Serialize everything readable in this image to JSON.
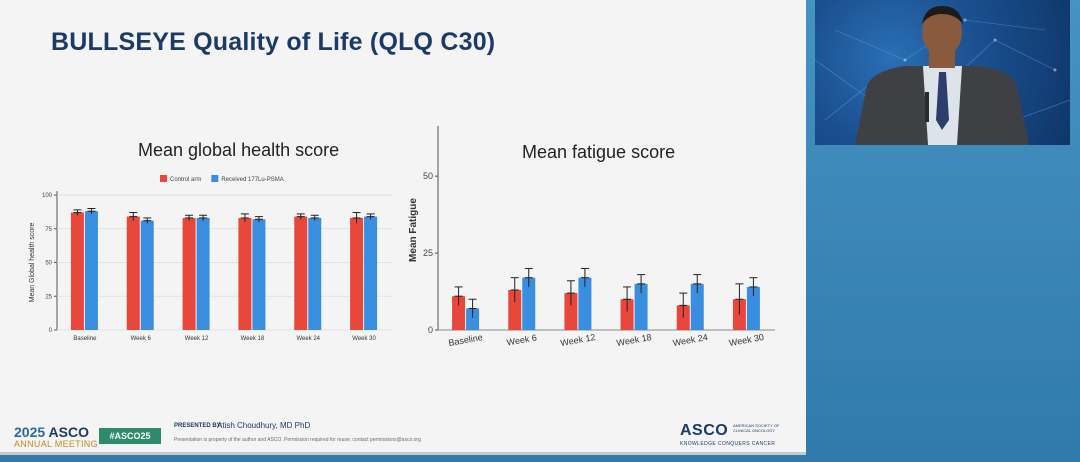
{
  "slide": {
    "title": "BULLSEYE Quality of Life (QLQ C30)"
  },
  "footer": {
    "year": "2025",
    "asco": "ASCO",
    "meeting": "ANNUAL MEETING",
    "hashtag": "#ASCO25",
    "presented_by_label": "PRESENTED BY:",
    "presenter": "Atish Choudhury, MD PhD",
    "disclaimer": "Presentation is property of the author and ASCO. Permission required for reuse; contact permissions@asco.org",
    "logo": "ASCO",
    "logo_society": "AMERICAN SOCIETY OF CLINICAL ONCOLOGY",
    "logo_tagline": "KNOWLEDGE CONQUERS CANCER"
  },
  "colors": {
    "control": "#e8473b",
    "treatment": "#3a8ee0",
    "title": "#1c3a66"
  },
  "chart_data": [
    {
      "type": "bar",
      "title": "Mean global health score",
      "ylabel": "Mean Global health score",
      "xlabel": "",
      "ylim": [
        0,
        100
      ],
      "yticks": [
        0,
        25,
        50,
        75,
        100
      ],
      "legend_position": "top-center",
      "categories": [
        "Baseline",
        "Week 6",
        "Week 12",
        "Week 18",
        "Week 24",
        "Week 30"
      ],
      "series": [
        {
          "name": "Control arm",
          "color": "#e8473b",
          "values": [
            87,
            84,
            83,
            83,
            84,
            83
          ],
          "errors": [
            2,
            3,
            2,
            3,
            2,
            4
          ]
        },
        {
          "name": "Received 177Lu-PSMA",
          "color": "#3a8ee0",
          "values": [
            88,
            81,
            83,
            82,
            83,
            84
          ],
          "errors": [
            2,
            2,
            2,
            2,
            2,
            2
          ]
        }
      ]
    },
    {
      "type": "bar",
      "title": "Mean fatigue score",
      "ylabel": "Mean Fatigue",
      "xlabel": "",
      "ylim": [
        0,
        65
      ],
      "yticks": [
        0,
        25,
        50
      ],
      "categories": [
        "Baseline",
        "Week 6",
        "Week 12",
        "Week 18",
        "Week 24",
        "Week 30"
      ],
      "series": [
        {
          "color": "#e8473b",
          "values": [
            11,
            13,
            12,
            10,
            8,
            10
          ],
          "errors": [
            3,
            4,
            4,
            4,
            4,
            5
          ]
        },
        {
          "color": "#3a8ee0",
          "values": [
            7,
            17,
            17,
            15,
            15,
            14
          ],
          "errors": [
            3,
            3,
            3,
            3,
            3,
            3
          ]
        }
      ]
    }
  ]
}
